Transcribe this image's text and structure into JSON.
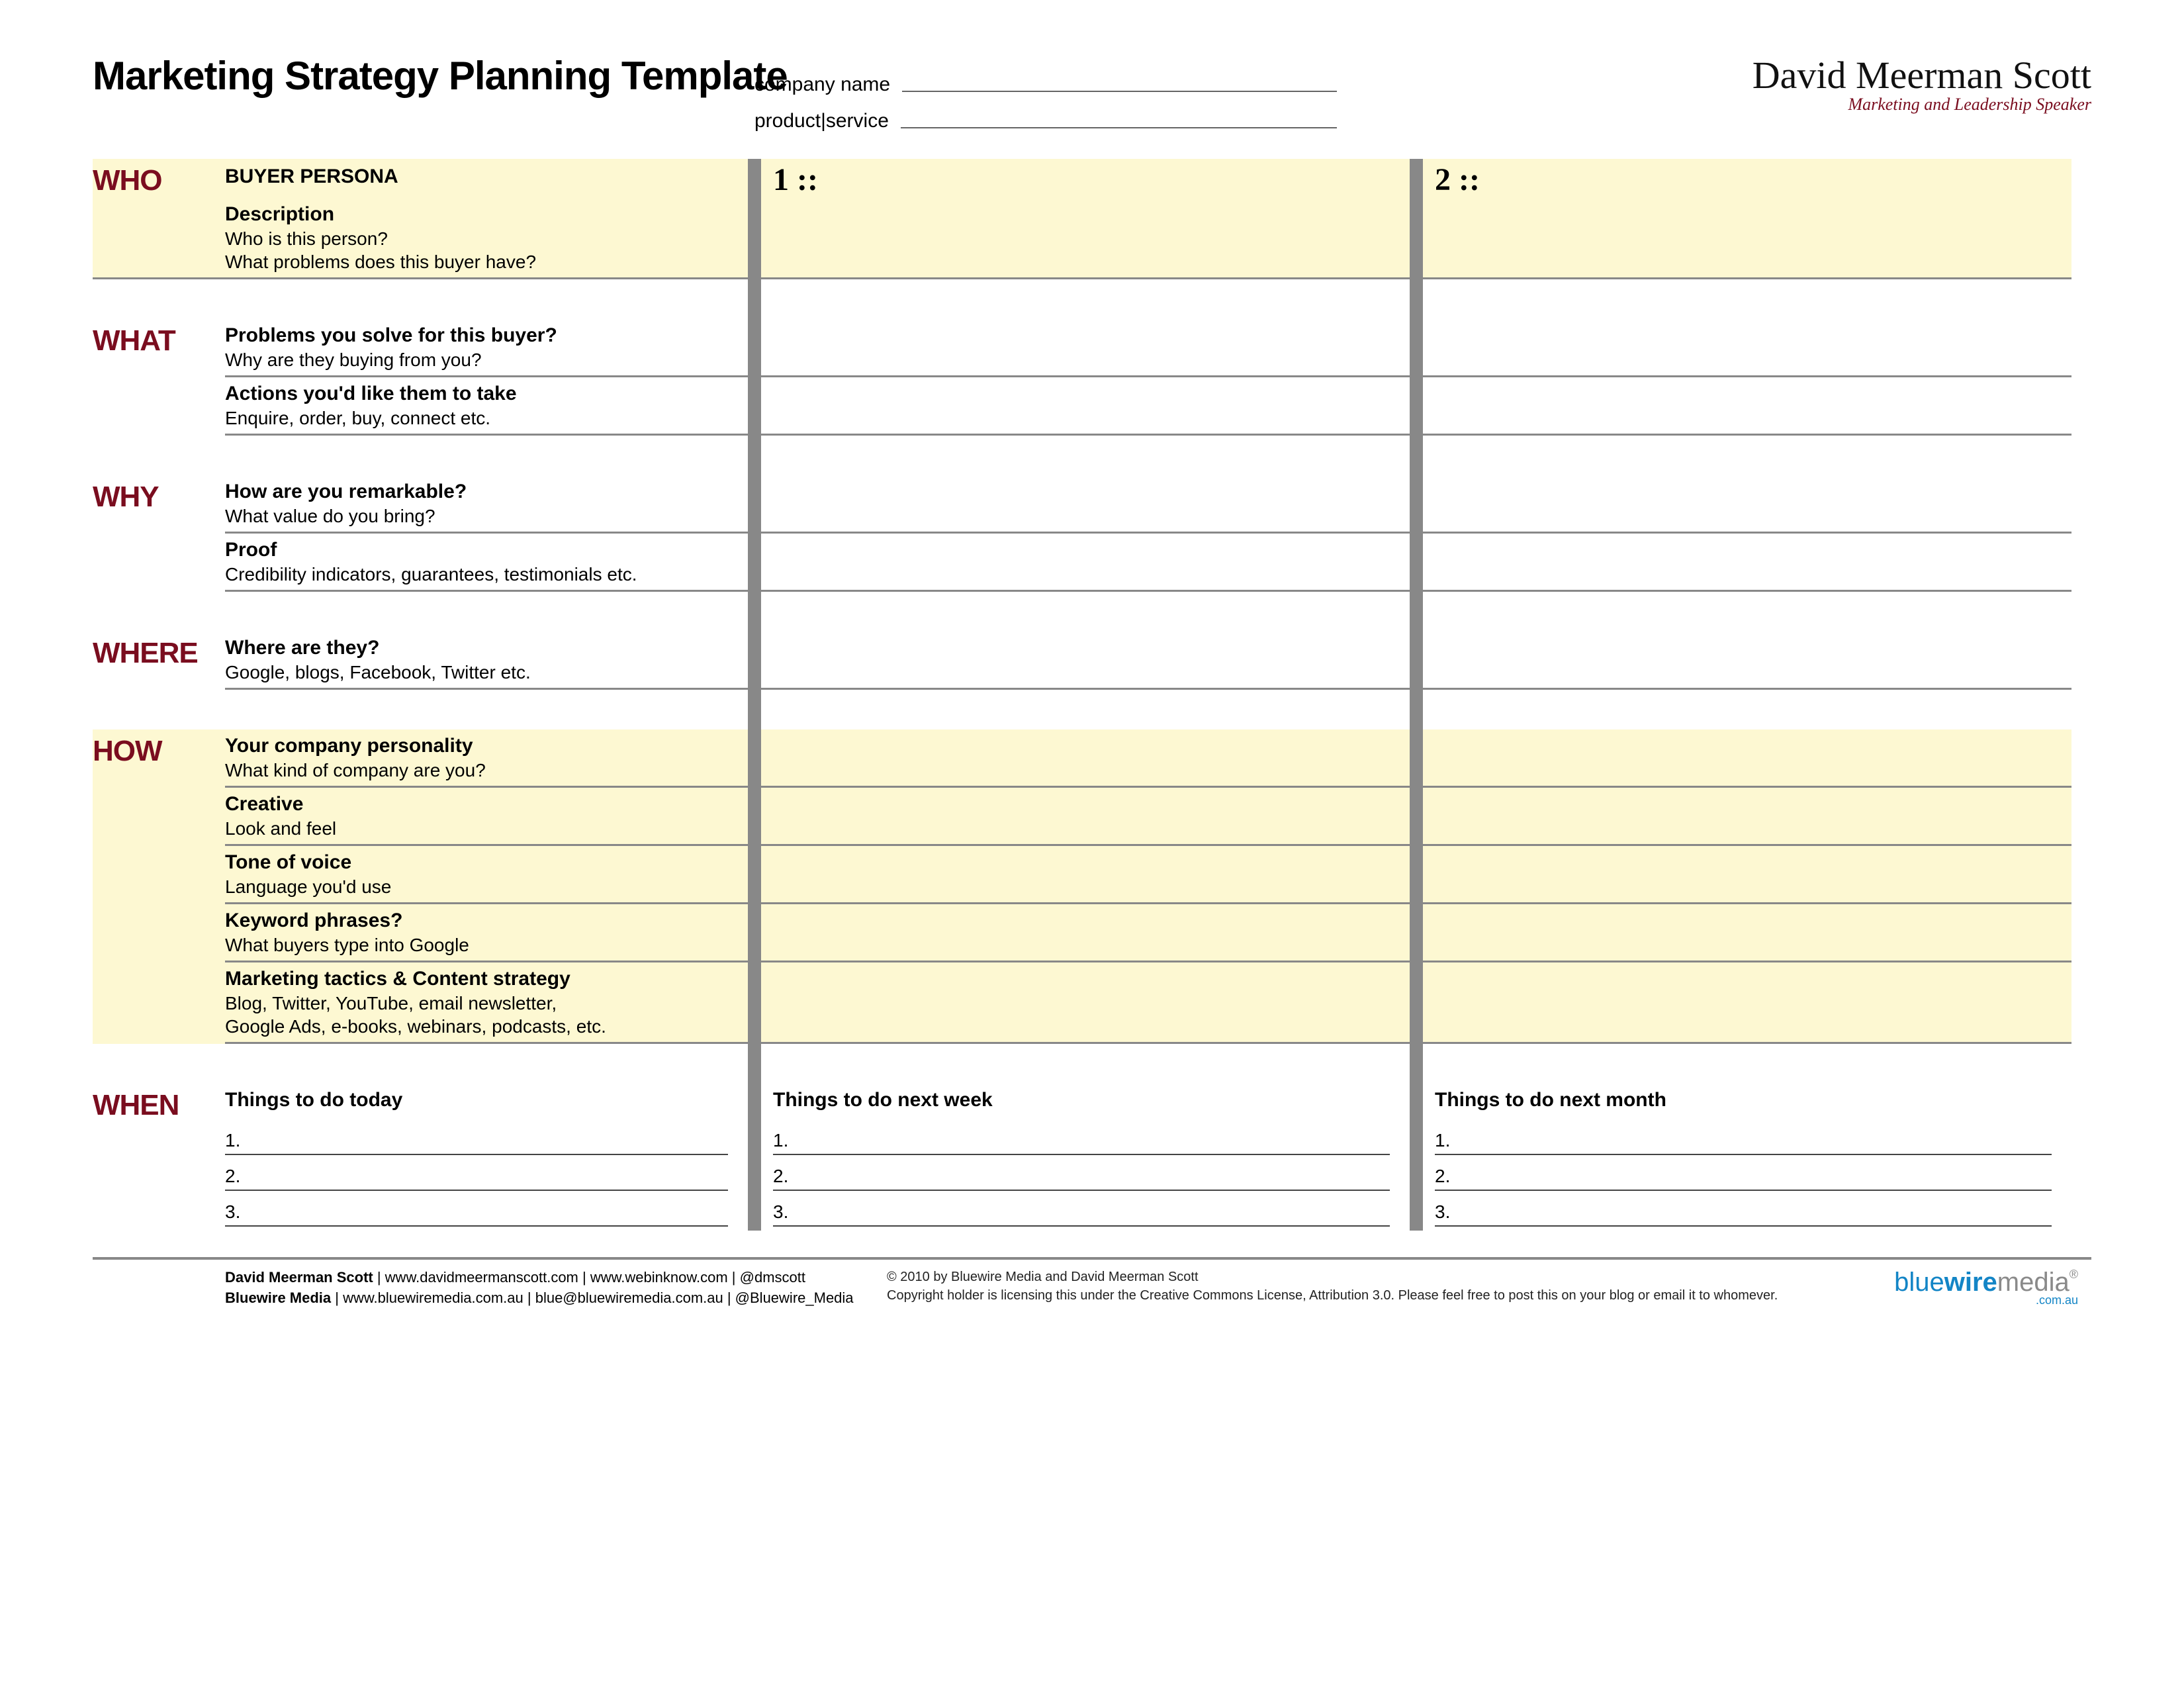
{
  "colors": {
    "accent": "#7a0d1f",
    "highlight_bg": "#fdf8d2",
    "rule": "#888888",
    "logo_blue": "#1385c6",
    "logo_gray": "#8a8a8a"
  },
  "header": {
    "title": "Marketing Strategy Planning Template",
    "meta": {
      "company_label": "company name",
      "product_label": "product|service"
    },
    "brand": {
      "name": "David Meerman Scott",
      "tagline": "Marketing and Leadership Speaker"
    }
  },
  "columns": {
    "persona_title": "BUYER PERSONA",
    "col1": "1 ::",
    "col2": "2 ::"
  },
  "sections": {
    "who": {
      "label": "WHO",
      "rows": [
        {
          "q": "Description",
          "sub": "Who is this person?\nWhat problems does this buyer have?"
        }
      ]
    },
    "what": {
      "label": "WHAT",
      "rows": [
        {
          "q": "Problems you solve for this buyer?",
          "sub": "Why are they buying from you?"
        },
        {
          "q": "Actions you'd like them to take",
          "sub": "Enquire, order, buy, connect etc."
        }
      ]
    },
    "why": {
      "label": "WHY",
      "rows": [
        {
          "q": "How are you remarkable?",
          "sub": "What value do you bring?"
        },
        {
          "q": "Proof",
          "sub": "Credibility indicators, guarantees, testimonials etc."
        }
      ]
    },
    "where": {
      "label": "WHERE",
      "rows": [
        {
          "q": "Where are they?",
          "sub": "Google, blogs, Facebook, Twitter etc."
        }
      ]
    },
    "how": {
      "label": "HOW",
      "rows": [
        {
          "q": "Your company personality",
          "sub": "What kind of company are you?"
        },
        {
          "q": "Creative",
          "sub": "Look and feel"
        },
        {
          "q": "Tone of voice",
          "sub": "Language you'd use"
        },
        {
          "q": "Keyword phrases?",
          "sub": "What buyers type into Google"
        },
        {
          "q": "Marketing tactics & Content strategy",
          "sub": "Blog, Twitter, YouTube, email newsletter,\nGoogle Ads, e-books, webinars, podcasts, etc."
        }
      ]
    },
    "when": {
      "label": "WHEN",
      "cols": [
        {
          "title": "Things to do today",
          "items": [
            "1.",
            "2.",
            "3."
          ]
        },
        {
          "title": "Things to do next week",
          "items": [
            "1.",
            "2.",
            "3."
          ]
        },
        {
          "title": "Things to do next month",
          "items": [
            "1.",
            "2.",
            "3."
          ]
        }
      ]
    }
  },
  "footer": {
    "credits": [
      {
        "name": "David Meerman Scott",
        "text": " |  www.davidmeermanscott.com  |  www.webinknow.com  |  @dmscott"
      },
      {
        "name": "Bluewire Media",
        "text": " |  www.bluewiremedia.com.au  |  blue@bluewiremedia.com.au  |  @Bluewire_Media"
      }
    ],
    "copyright": "© 2010 by Bluewire Media and David Meerman Scott",
    "license": "Copyright holder is licensing this under the Creative Commons License, Attribution 3.0. Please feel free to post this on your blog or email it to whomever.",
    "logo": {
      "part1": "blue",
      "part2": "wire",
      "part3": "media",
      "sub": ".com.au"
    }
  }
}
